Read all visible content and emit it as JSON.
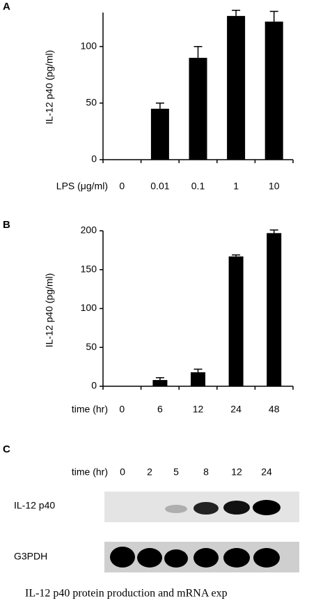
{
  "chart_data": [
    {
      "type": "bar",
      "panel_label": "A",
      "ylabel": "IL-12 p40 (pg/ml)",
      "xlabel": "LPS (μg/ml)",
      "categories": [
        "0",
        "0.01",
        "0.1",
        "1",
        "10"
      ],
      "values": [
        0,
        45,
        90,
        127,
        122
      ],
      "errors": [
        0,
        5,
        10,
        5,
        9
      ],
      "ylim": [
        0,
        130
      ],
      "yticks": [
        0,
        50,
        100
      ],
      "color": "#000000"
    },
    {
      "type": "bar",
      "panel_label": "B",
      "ylabel": "IL-12 p40 (pg/ml)",
      "xlabel": "time (hr)",
      "categories": [
        "0",
        "6",
        "12",
        "24",
        "48"
      ],
      "values": [
        0,
        8,
        18,
        167,
        197
      ],
      "errors": [
        0,
        3,
        4,
        2,
        4
      ],
      "ylim": [
        0,
        200
      ],
      "yticks": [
        0,
        50,
        100,
        150,
        200
      ],
      "color": "#000000"
    }
  ],
  "blot": {
    "panel_label": "C",
    "xlabel": "time (hr)",
    "lanes": [
      "0",
      "2",
      "5",
      "8",
      "12",
      "24"
    ],
    "rows": [
      "IL-12 p40",
      "G3PDH"
    ]
  },
  "caption": "IL-12 p40 protein production and mRNA exp"
}
